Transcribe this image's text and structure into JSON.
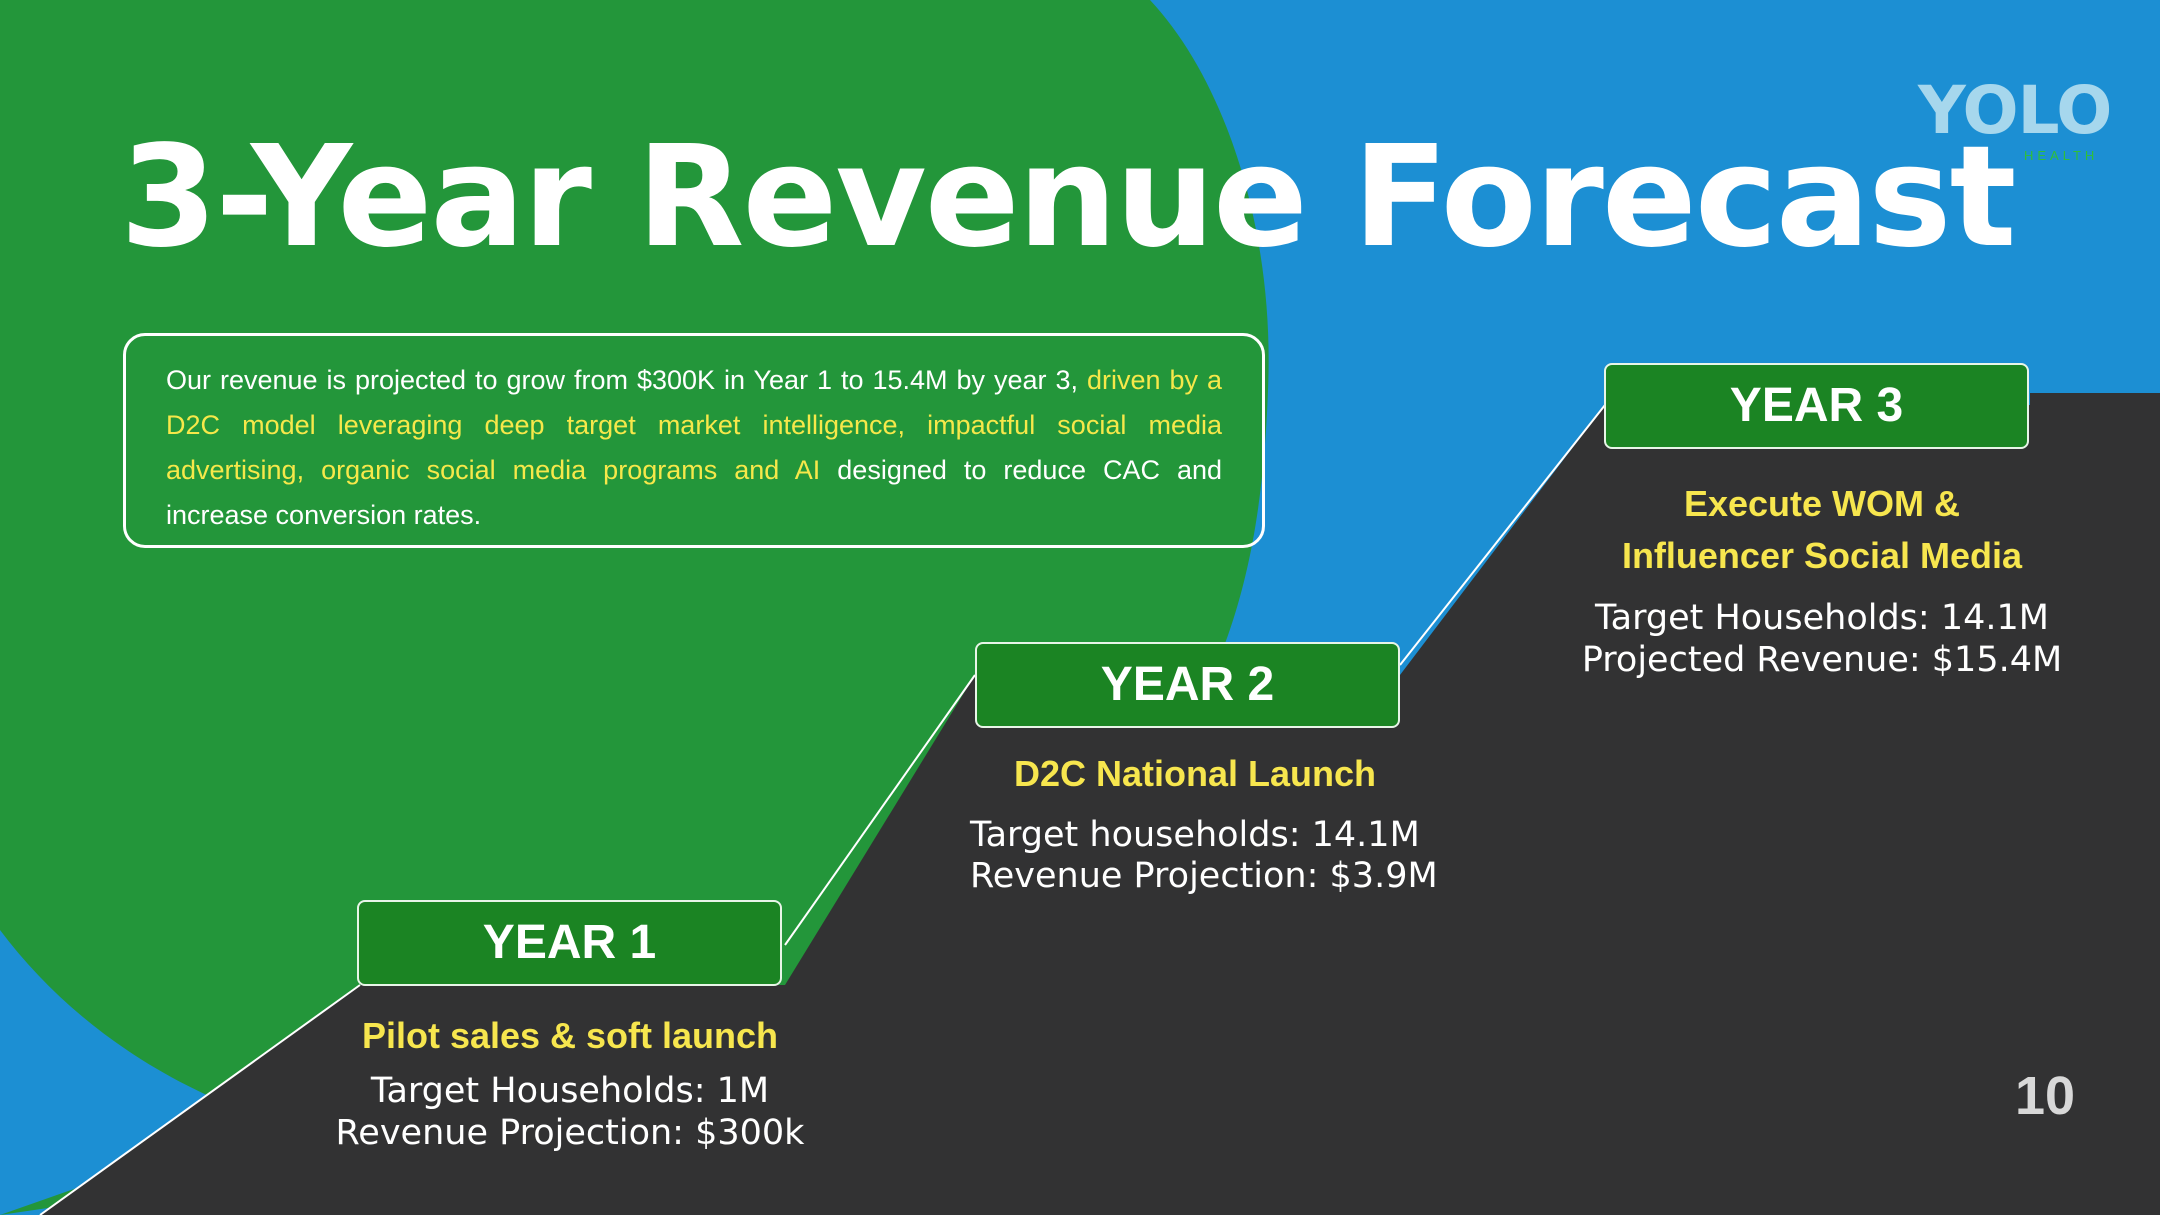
{
  "slide": {
    "title": "3-Year Revenue Forecast",
    "page_number": "10"
  },
  "logo": {
    "name": "YOLO",
    "sub": "HEALTH"
  },
  "description": {
    "plain_start": "Our revenue is projected to grow from $300K in Year 1 to 15.4M by year 3, ",
    "highlight": "driven by a D2C model leveraging deep target market intelligence, impactful social media advertising, organic social media programs and AI",
    "plain_end": " designed to reduce CAC and increase conversion rates."
  },
  "years": [
    {
      "label": "YEAR 1",
      "subtitle": "Pilot sales & soft launch",
      "line1": "Target Households: 1M",
      "line2": "Revenue Projection: $300k"
    },
    {
      "label": "YEAR 2",
      "subtitle": "D2C National Launch",
      "line1": "Target households: 14.1M",
      "line2": "Revenue Projection: $3.9M"
    },
    {
      "label": "YEAR 3",
      "subtitle_line1": "Execute WOM &",
      "subtitle_line2": "Influencer Social Media",
      "line1": "Target Households: 14.1M",
      "line2": "Projected Revenue: $15.4M"
    }
  ],
  "colors": {
    "blue": "#1c8fd3",
    "green": "#23963a",
    "dark": "#323233",
    "box_green": "#1b8423",
    "highlight_yellow": "#f6e84a"
  }
}
